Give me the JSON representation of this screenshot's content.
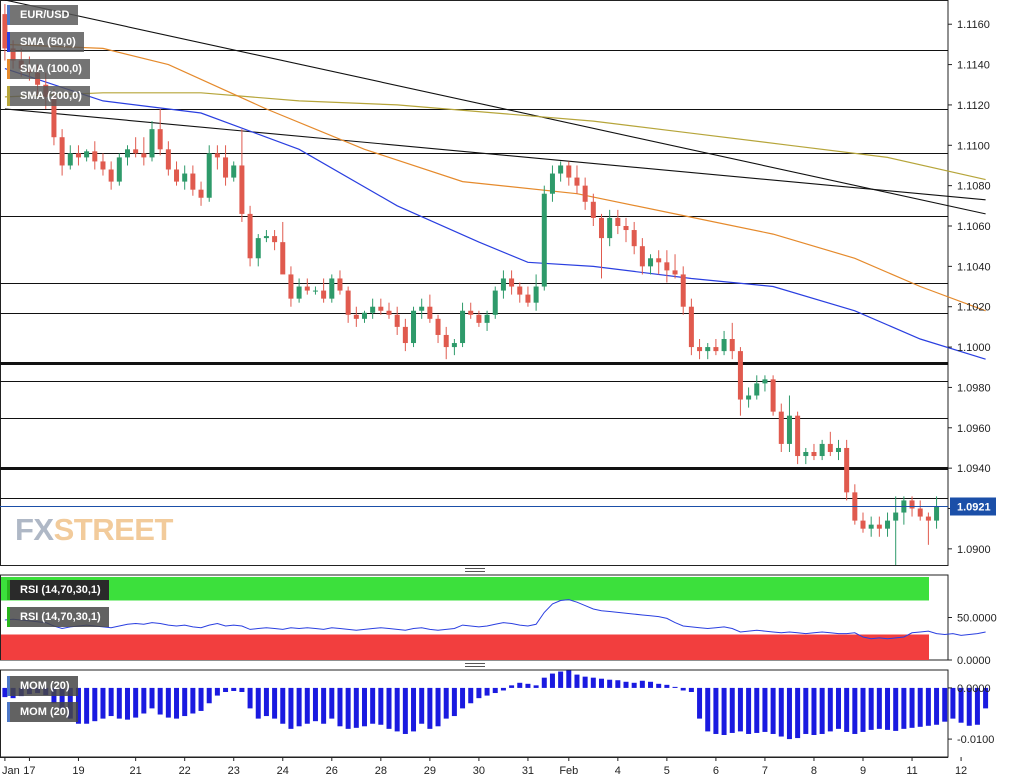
{
  "chart_data": {
    "type": "candlestick",
    "symbol": "EUR/USD",
    "indicators": {
      "sma": [
        {
          "label": "SMA (50,0)",
          "color": "#2a3fe0"
        },
        {
          "label": "SMA (100,0)",
          "color": "#e58a2c"
        },
        {
          "label": "SMA (200,0)",
          "color": "#b6a53a"
        }
      ],
      "rsi_labels": [
        "RSI (14,70,30,1)",
        "RSI (14,70,30,1)"
      ],
      "mom_labels": [
        "MOM (20)",
        "MOM (20)"
      ]
    },
    "price_axis": {
      "ticks": [
        "1.1160",
        "1.1140",
        "1.1120",
        "1.1100",
        "1.1080",
        "1.1060",
        "1.1040",
        "1.1020",
        "1.1000",
        "1.0980",
        "1.0960",
        "1.0940",
        "1.0920",
        "1.0900"
      ],
      "tick_values": [
        1.116,
        1.114,
        1.112,
        1.11,
        1.108,
        1.106,
        1.104,
        1.102,
        1.1,
        1.098,
        1.096,
        1.094,
        1.092,
        1.09
      ],
      "ylim": [
        1.0892,
        1.1172
      ],
      "last_price": "1.0921",
      "last_value": 1.0921
    },
    "rsi_axis": {
      "ticks": [
        "50.0000",
        "0.0000"
      ],
      "tick_values": [
        50,
        0
      ],
      "ylim": [
        0,
        100
      ]
    },
    "mom_axis": {
      "ticks": [
        "0.0000",
        "-0.0100"
      ],
      "tick_values": [
        0,
        -0.01
      ],
      "ylim": [
        -0.0135,
        0.0035
      ]
    },
    "x_axis": {
      "labels": [
        "Jan",
        "17",
        "19",
        "21",
        "22",
        "23",
        "24",
        "26",
        "28",
        "29",
        "30",
        "31",
        "Feb",
        "4",
        "5",
        "6",
        "7",
        "8",
        "9",
        "11",
        "12"
      ],
      "label_index": [
        0,
        3,
        9,
        16,
        22,
        28,
        34,
        40,
        46,
        52,
        58,
        64,
        69,
        75,
        81,
        87,
        93,
        99,
        105,
        111,
        117
      ]
    },
    "horizontal_levels": [
      {
        "value": 1.1147,
        "bold": false
      },
      {
        "value": 1.1118,
        "bold": false
      },
      {
        "value": 1.1096,
        "bold": false
      },
      {
        "value": 1.1065,
        "bold": false
      },
      {
        "value": 1.1032,
        "bold": false
      },
      {
        "value": 1.1017,
        "bold": false
      },
      {
        "value": 1.0992,
        "bold": true
      },
      {
        "value": 1.0983,
        "bold": false
      },
      {
        "value": 1.0965,
        "bold": false
      },
      {
        "value": 1.094,
        "bold": true
      },
      {
        "value": 1.0925,
        "bold": false
      }
    ],
    "trendlines": [
      {
        "from": {
          "i": 0,
          "v": 1.1172
        },
        "to": {
          "i": 120,
          "v": 1.1066
        }
      },
      {
        "from": {
          "i": 0,
          "v": 1.1118
        },
        "to": {
          "i": 120,
          "v": 1.1073
        }
      }
    ],
    "candles_ohlc": [
      [
        1.1165,
        1.117,
        1.1142,
        1.1148
      ],
      [
        1.1148,
        1.1152,
        1.1138,
        1.1142
      ],
      [
        1.1142,
        1.1148,
        1.1134,
        1.1138
      ],
      [
        1.1138,
        1.1144,
        1.1132,
        1.1136
      ],
      [
        1.1136,
        1.114,
        1.1125,
        1.113
      ],
      [
        1.113,
        1.1136,
        1.1118,
        1.1124
      ],
      [
        1.1124,
        1.1128,
        1.11,
        1.1104
      ],
      [
        1.1104,
        1.1108,
        1.1085,
        1.109
      ],
      [
        1.109,
        1.11,
        1.1088,
        1.1096
      ],
      [
        1.1096,
        1.11,
        1.109,
        1.1094
      ],
      [
        1.1094,
        1.1098,
        1.1092,
        1.1097
      ],
      [
        1.1097,
        1.1102,
        1.1088,
        1.1092
      ],
      [
        1.1092,
        1.1096,
        1.1085,
        1.1088
      ],
      [
        1.1088,
        1.1092,
        1.1078,
        1.1082
      ],
      [
        1.1082,
        1.1096,
        1.108,
        1.1094
      ],
      [
        1.1094,
        1.11,
        1.109,
        1.1098
      ],
      [
        1.1098,
        1.1104,
        1.1094,
        1.1096
      ],
      [
        1.1096,
        1.1104,
        1.109,
        1.1094
      ],
      [
        1.1094,
        1.1112,
        1.1092,
        1.1108
      ],
      [
        1.1108,
        1.1118,
        1.1095,
        1.1098
      ],
      [
        1.1098,
        1.1102,
        1.1085,
        1.1088
      ],
      [
        1.1088,
        1.1092,
        1.108,
        1.1082
      ],
      [
        1.1082,
        1.109,
        1.1078,
        1.1086
      ],
      [
        1.1086,
        1.109,
        1.1075,
        1.1078
      ],
      [
        1.1078,
        1.1082,
        1.107,
        1.1074
      ],
      [
        1.1074,
        1.11,
        1.1072,
        1.1096
      ],
      [
        1.1096,
        1.11,
        1.1088,
        1.1094
      ],
      [
        1.1094,
        1.11,
        1.108,
        1.1084
      ],
      [
        1.1084,
        1.1092,
        1.1082,
        1.109
      ],
      [
        1.109,
        1.1108,
        1.1062,
        1.1066
      ],
      [
        1.1066,
        1.107,
        1.104,
        1.1044
      ],
      [
        1.1044,
        1.1056,
        1.104,
        1.1054
      ],
      [
        1.1054,
        1.1058,
        1.1052,
        1.1055
      ],
      [
        1.1055,
        1.1058,
        1.1048,
        1.1052
      ],
      [
        1.1052,
        1.1062,
        1.104,
        1.1036
      ],
      [
        1.1036,
        1.104,
        1.102,
        1.1024
      ],
      [
        1.1024,
        1.1034,
        1.1022,
        1.103
      ],
      [
        1.103,
        1.1034,
        1.1026,
        1.1028
      ],
      [
        1.1028,
        1.103,
        1.1026,
        1.1028
      ],
      [
        1.1028,
        1.1034,
        1.1022,
        1.1024
      ],
      [
        1.1024,
        1.1036,
        1.1022,
        1.1034
      ],
      [
        1.1034,
        1.1038,
        1.1026,
        1.1028
      ],
      [
        1.1028,
        1.103,
        1.1012,
        1.1016
      ],
      [
        1.1016,
        1.102,
        1.101,
        1.1014
      ],
      [
        1.1014,
        1.1018,
        1.1012,
        1.1017
      ],
      [
        1.1017,
        1.1024,
        1.1014,
        1.102
      ],
      [
        1.102,
        1.1024,
        1.1016,
        1.1018
      ],
      [
        1.1018,
        1.1022,
        1.1014,
        1.1016
      ],
      [
        1.1016,
        1.102,
        1.1006,
        1.101
      ],
      [
        1.101,
        1.1014,
        1.0998,
        1.1002
      ],
      [
        1.1002,
        1.102,
        1.1,
        1.1018
      ],
      [
        1.1018,
        1.1024,
        1.1014,
        1.102
      ],
      [
        1.102,
        1.1026,
        1.1012,
        1.1014
      ],
      [
        1.1014,
        1.1016,
        1.1002,
        1.1006
      ],
      [
        1.1006,
        1.101,
        1.0994,
        1.1
      ],
      [
        1.1,
        1.1004,
        1.0996,
        1.1002
      ],
      [
        1.1002,
        1.1022,
        1.1,
        1.1018
      ],
      [
        1.1018,
        1.1022,
        1.1014,
        1.1016
      ],
      [
        1.1016,
        1.1018,
        1.101,
        1.1012
      ],
      [
        1.1012,
        1.1018,
        1.1008,
        1.1016
      ],
      [
        1.1016,
        1.103,
        1.1014,
        1.1028
      ],
      [
        1.1028,
        1.1038,
        1.1024,
        1.1034
      ],
      [
        1.1034,
        1.1038,
        1.1026,
        1.103
      ],
      [
        1.103,
        1.1032,
        1.1022,
        1.1026
      ],
      [
        1.1026,
        1.103,
        1.102,
        1.1022
      ],
      [
        1.1022,
        1.1036,
        1.1018,
        1.103
      ],
      [
        1.103,
        1.108,
        1.1028,
        1.1076
      ],
      [
        1.1076,
        1.109,
        1.1072,
        1.1086
      ],
      [
        1.1086,
        1.1092,
        1.1082,
        1.109
      ],
      [
        1.109,
        1.1092,
        1.108,
        1.1084
      ],
      [
        1.1084,
        1.109,
        1.1076,
        1.108
      ],
      [
        1.108,
        1.1084,
        1.1068,
        1.1072
      ],
      [
        1.1072,
        1.1076,
        1.106,
        1.1064
      ],
      [
        1.1064,
        1.1066,
        1.1034,
        1.1054
      ],
      [
        1.1054,
        1.1068,
        1.105,
        1.1064
      ],
      [
        1.1064,
        1.1068,
        1.1056,
        1.106
      ],
      [
        1.106,
        1.1064,
        1.1052,
        1.1058
      ],
      [
        1.1058,
        1.1062,
        1.1046,
        1.105
      ],
      [
        1.105,
        1.1054,
        1.1036,
        1.104
      ],
      [
        1.104,
        1.1046,
        1.1036,
        1.1044
      ],
      [
        1.1044,
        1.1048,
        1.1036,
        1.1042
      ],
      [
        1.1042,
        1.1048,
        1.1032,
        1.1038
      ],
      [
        1.1038,
        1.1046,
        1.1034,
        1.1036
      ],
      [
        1.1036,
        1.104,
        1.1016,
        1.102
      ],
      [
        1.102,
        1.1024,
        1.0996,
        1.1
      ],
      [
        1.1,
        1.1004,
        1.0994,
        1.0998
      ],
      [
        1.0998,
        1.1002,
        1.0994,
        1.1
      ],
      [
        1.1,
        1.1004,
        1.0996,
        1.0998
      ],
      [
        1.0998,
        1.1008,
        1.0996,
        1.1004
      ],
      [
        1.1004,
        1.1012,
        1.0994,
        1.0998
      ],
      [
        1.0998,
        1.1,
        1.0966,
        1.0974
      ],
      [
        1.0974,
        1.098,
        1.097,
        1.0976
      ],
      [
        1.0976,
        1.0986,
        1.0974,
        1.0982
      ],
      [
        1.0982,
        1.0986,
        1.0978,
        1.0984
      ],
      [
        1.0984,
        1.0986,
        1.0966,
        1.0968
      ],
      [
        1.0968,
        1.0972,
        1.0948,
        1.0952
      ],
      [
        1.0952,
        1.0976,
        1.0948,
        1.0966
      ],
      [
        1.0966,
        1.0968,
        1.0942,
        1.0946
      ],
      [
        1.0946,
        1.095,
        1.0942,
        1.0948
      ],
      [
        1.0948,
        1.0952,
        1.0944,
        1.0946
      ],
      [
        1.0946,
        1.0954,
        1.0944,
        1.0952
      ],
      [
        1.0952,
        1.0958,
        1.0946,
        1.0948
      ],
      [
        1.0948,
        1.0954,
        1.0944,
        1.095
      ],
      [
        1.095,
        1.0954,
        1.0924,
        1.0928
      ],
      [
        1.0928,
        1.0932,
        1.0912,
        1.0914
      ],
      [
        1.0914,
        1.0918,
        1.0908,
        1.091
      ],
      [
        1.091,
        1.0916,
        1.0906,
        1.0912
      ],
      [
        1.0912,
        1.0916,
        1.0906,
        1.091
      ],
      [
        1.091,
        1.0918,
        1.0906,
        1.0914
      ],
      [
        1.0914,
        1.0926,
        1.0892,
        1.0918
      ],
      [
        1.0918,
        1.0926,
        1.0912,
        1.0924
      ],
      [
        1.0924,
        1.0926,
        1.0916,
        1.092
      ],
      [
        1.092,
        1.0924,
        1.0914,
        1.0916
      ],
      [
        1.0916,
        1.0918,
        1.0902,
        1.0914
      ],
      [
        1.0914,
        1.0926,
        1.091,
        1.0921
      ]
    ],
    "sma50": [
      [
        0,
        1.1138
      ],
      [
        12,
        1.1122
      ],
      [
        24,
        1.1116
      ],
      [
        36,
        1.1098
      ],
      [
        48,
        1.107
      ],
      [
        58,
        1.1052
      ],
      [
        64,
        1.1042
      ],
      [
        72,
        1.104
      ],
      [
        84,
        1.1034
      ],
      [
        94,
        1.103
      ],
      [
        104,
        1.1018
      ],
      [
        112,
        1.1004
      ],
      [
        120,
        1.0994
      ]
    ],
    "sma100": [
      [
        0,
        1.115
      ],
      [
        12,
        1.1148
      ],
      [
        20,
        1.114
      ],
      [
        32,
        1.1118
      ],
      [
        44,
        1.1098
      ],
      [
        56,
        1.1082
      ],
      [
        70,
        1.1076
      ],
      [
        82,
        1.1066
      ],
      [
        94,
        1.1056
      ],
      [
        104,
        1.1044
      ],
      [
        112,
        1.103
      ],
      [
        120,
        1.1018
      ]
    ],
    "sma200": [
      [
        0,
        1.1124
      ],
      [
        12,
        1.1126
      ],
      [
        24,
        1.1126
      ],
      [
        36,
        1.1122
      ],
      [
        48,
        1.112
      ],
      [
        60,
        1.1116
      ],
      [
        72,
        1.1112
      ],
      [
        84,
        1.1106
      ],
      [
        96,
        1.11
      ],
      [
        108,
        1.1094
      ],
      [
        120,
        1.1083
      ]
    ],
    "rsi_values": [
      47,
      48,
      47,
      46,
      45,
      44,
      40,
      37,
      39,
      40,
      41,
      40,
      39,
      38,
      40,
      42,
      43,
      42,
      44,
      43,
      41,
      40,
      41,
      39,
      38,
      41,
      43,
      40,
      41,
      40,
      36,
      37,
      38,
      37,
      36,
      38,
      37,
      38,
      37,
      36,
      38,
      37,
      36,
      35,
      36,
      37,
      38,
      37,
      36,
      35,
      37,
      38,
      36,
      35,
      36,
      37,
      41,
      40,
      39,
      40,
      42,
      44,
      43,
      41,
      40,
      42,
      56,
      66,
      70,
      71,
      68,
      64,
      60,
      58,
      57,
      56,
      55,
      54,
      53,
      52,
      51,
      49,
      44,
      40,
      39,
      38,
      37,
      38,
      39,
      37,
      33,
      34,
      35,
      34,
      33,
      32,
      33,
      32,
      31,
      32,
      33,
      32,
      31,
      31,
      32,
      27,
      25,
      26,
      25,
      26,
      27,
      32,
      33,
      34,
      31,
      30,
      31,
      29,
      30,
      31,
      33
    ],
    "mom_values": [
      -0.0018,
      -0.002,
      -0.0016,
      -0.0012,
      -0.001,
      -0.0014,
      -0.003,
      -0.004,
      -0.006,
      -0.007,
      -0.007,
      -0.0065,
      -0.006,
      -0.0055,
      -0.006,
      -0.0062,
      -0.0058,
      -0.005,
      -0.004,
      -0.0052,
      -0.0058,
      -0.006,
      -0.0055,
      -0.005,
      -0.0045,
      -0.003,
      -0.0015,
      -0.0008,
      -0.0006,
      -0.0008,
      -0.004,
      -0.006,
      -0.0055,
      -0.006,
      -0.007,
      -0.008,
      -0.0075,
      -0.007,
      -0.0065,
      -0.007,
      -0.006,
      -0.0075,
      -0.008,
      -0.0078,
      -0.0075,
      -0.007,
      -0.0072,
      -0.008,
      -0.0085,
      -0.009,
      -0.0085,
      -0.007,
      -0.008,
      -0.0075,
      -0.006,
      -0.0055,
      -0.004,
      -0.003,
      -0.002,
      -0.0015,
      -0.001,
      -0.0005,
      0.0005,
      0.001,
      0.0008,
      0.0005,
      0.002,
      0.0028,
      0.0032,
      0.0034,
      0.0026,
      0.0022,
      0.002,
      0.0018,
      0.0016,
      0.0015,
      0.0012,
      0.001,
      0.0014,
      0.0012,
      0.0008,
      0.0006,
      0.0002,
      -0.0005,
      -0.0008,
      -0.006,
      -0.0085,
      -0.009,
      -0.0092,
      -0.0088,
      -0.0085,
      -0.009,
      -0.0088,
      -0.0086,
      -0.009,
      -0.0095,
      -0.01,
      -0.0098,
      -0.009,
      -0.0092,
      -0.009,
      -0.0085,
      -0.008,
      -0.0086,
      -0.009,
      -0.0086,
      -0.0082,
      -0.008,
      -0.0082,
      -0.0084,
      -0.008,
      -0.0078,
      -0.0076,
      -0.0074,
      -0.0072,
      -0.0066,
      -0.006,
      -0.0068,
      -0.0074,
      -0.0072,
      -0.004
    ]
  },
  "brand": {
    "logo_fx": "FX",
    "logo_street": "STREET"
  },
  "colors": {
    "up": "#2e9a6a",
    "down": "#e05a4e",
    "rsi_line": "#2a3fe0",
    "mom_bar": "#1a1ae0",
    "rsi_high": "#3ce03c",
    "rsi_low": "#f23e3e",
    "last_price_bg": "#1b4fa8"
  }
}
